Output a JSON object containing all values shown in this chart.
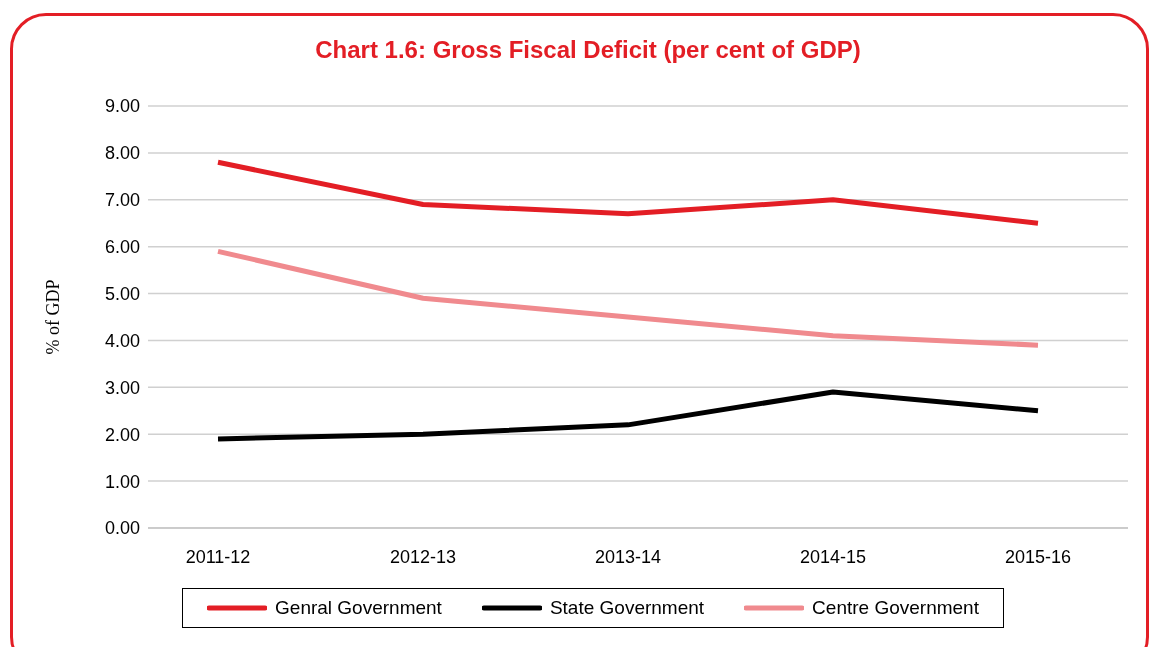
{
  "chart_data": {
    "type": "line",
    "title": "Chart 1.6: Gross Fiscal Deficit (per cent of GDP)",
    "ylabel": "% of GDP",
    "categories": [
      "2011-12",
      "2012-13",
      "2013-14",
      "2014-15",
      "2015-16"
    ],
    "series": [
      {
        "name": "Genral Government",
        "color": "#e31e25",
        "values": [
          7.8,
          6.9,
          6.7,
          7.0,
          6.5
        ]
      },
      {
        "name": "State Government",
        "color": "#000000",
        "values": [
          1.9,
          2.0,
          2.2,
          2.9,
          2.5
        ]
      },
      {
        "name": "Centre Government",
        "color": "#f08a8e",
        "values": [
          5.9,
          4.9,
          4.5,
          4.1,
          3.9
        ]
      }
    ],
    "ylim": [
      0,
      9
    ],
    "yticks": [
      {
        "value": 0,
        "label": "0.00"
      },
      {
        "value": 1,
        "label": "1.00"
      },
      {
        "value": 2,
        "label": "2.00"
      },
      {
        "value": 3,
        "label": "3.00"
      },
      {
        "value": 4,
        "label": "4.00"
      },
      {
        "value": 5,
        "label": "5.00"
      },
      {
        "value": 6,
        "label": "6.00"
      },
      {
        "value": 7,
        "label": "7.00"
      },
      {
        "value": 8,
        "label": "8.00"
      },
      {
        "value": 9,
        "label": "9.00"
      }
    ],
    "grid": "y",
    "legend": "bottom",
    "marker": "none",
    "line_style": "solid"
  }
}
